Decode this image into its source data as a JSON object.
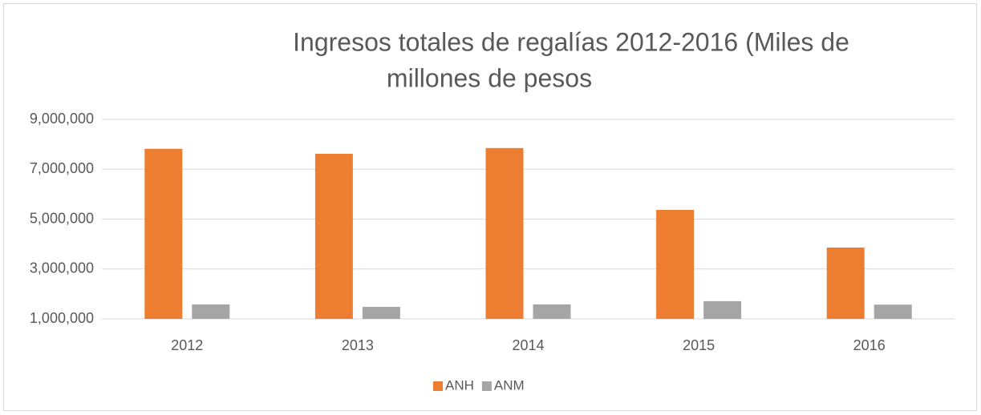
{
  "chart_data": {
    "type": "bar",
    "title": [
      "Ingresos totales de regalías 2012-2016 (Miles de",
      "millones de pesos"
    ],
    "categories": [
      "2012",
      "2013",
      "2014",
      "2015",
      "2016"
    ],
    "series": [
      {
        "name": "ANH",
        "color": "#ed7d31",
        "values": [
          7820000,
          7620000,
          7850000,
          5370000,
          3860000
        ]
      },
      {
        "name": "ANM",
        "color": "#a5a5a5",
        "values": [
          1580000,
          1480000,
          1580000,
          1710000,
          1570000
        ]
      }
    ],
    "ylim": [
      1000000,
      9000000
    ],
    "yticks": [
      {
        "value": 1000000,
        "label": "1,000,000"
      },
      {
        "value": 3000000,
        "label": "3,000,000"
      },
      {
        "value": 5000000,
        "label": "5,000,000"
      },
      {
        "value": 7000000,
        "label": "7,000,000"
      },
      {
        "value": 9000000,
        "label": "9,000,000"
      }
    ],
    "grid": true,
    "legend": "bottom"
  }
}
